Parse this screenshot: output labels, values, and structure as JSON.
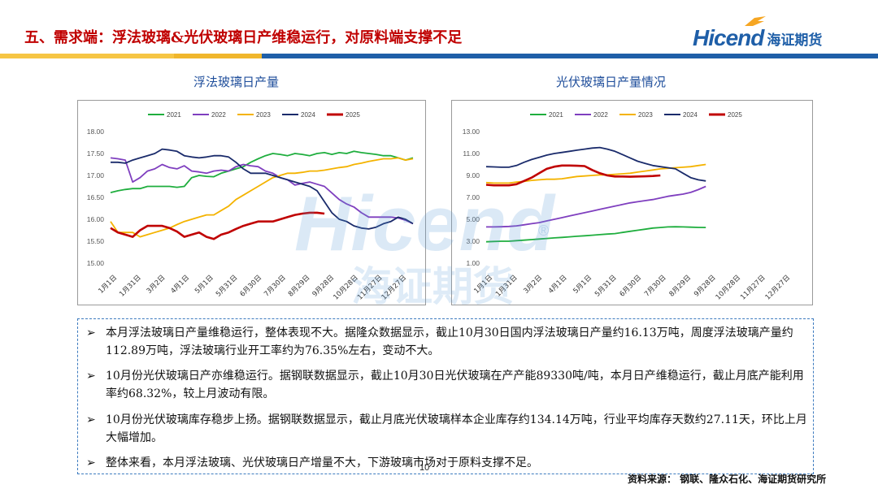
{
  "header": {
    "title": "五、需求端：浮法玻璃&光伏玻璃日产维稳运行，对原料端支撑不足",
    "logo_brand": "Hicend",
    "logo_sub": "海证期货",
    "bar_colors": [
      "#f6c544",
      "#f6c544",
      "#1f5fa8"
    ]
  },
  "watermark": {
    "brand": "Hicend",
    "sub": "海证期货",
    "mark": "®"
  },
  "chart_data": [
    {
      "type": "line",
      "title": "浮法玻璃日产量",
      "ylim": [
        15.0,
        18.0
      ],
      "yticks": [
        "18.00",
        "17.50",
        "17.00",
        "16.50",
        "16.00",
        "15.50",
        "15.00"
      ],
      "ytick_values": [
        18.0,
        17.5,
        17.0,
        16.5,
        16.0,
        15.5,
        15.0
      ],
      "xticks": [
        "1月1日",
        "1月31日",
        "3月2日",
        "4月1日",
        "5月1日",
        "5月31日",
        "6月30日",
        "7月30日",
        "8月29日",
        "9月28日",
        "10月28日",
        "11月27日",
        "12月27日"
      ],
      "grid": true,
      "legend": "top",
      "series": [
        {
          "name": "2021",
          "color": "#1fae3e",
          "values": [
            16.61,
            16.65,
            16.68,
            16.7,
            16.7,
            16.75,
            16.75,
            16.75,
            16.75,
            16.73,
            16.75,
            16.95,
            17.0,
            16.98,
            16.97,
            17.05,
            17.1,
            17.15,
            17.2,
            17.3,
            17.38,
            17.45,
            17.5,
            17.48,
            17.45,
            17.5,
            17.48,
            17.45,
            17.5,
            17.52,
            17.48,
            17.52,
            17.5,
            17.55,
            17.52,
            17.5,
            17.48,
            17.45,
            17.45,
            17.4,
            17.35,
            17.4
          ]
        },
        {
          "name": "2022",
          "color": "#7f3fbf",
          "values": [
            17.4,
            17.38,
            17.35,
            16.85,
            16.95,
            17.1,
            17.15,
            17.25,
            17.18,
            17.15,
            17.22,
            17.1,
            17.08,
            17.05,
            17.1,
            17.12,
            17.1,
            17.2,
            17.25,
            17.22,
            17.2,
            17.1,
            17.05,
            16.95,
            16.9,
            16.78,
            16.82,
            16.85,
            16.8,
            16.75,
            16.6,
            16.45,
            16.35,
            16.28,
            16.15,
            16.05,
            16.05,
            16.05,
            16.05,
            16.03,
            15.98,
            15.9
          ]
        },
        {
          "name": "2023",
          "color": "#f4b300",
          "values": [
            15.95,
            15.7,
            15.7,
            15.7,
            15.6,
            15.65,
            15.7,
            15.75,
            15.8,
            15.88,
            15.95,
            16.0,
            16.05,
            16.1,
            16.1,
            16.2,
            16.3,
            16.45,
            16.55,
            16.65,
            16.75,
            16.85,
            16.95,
            17.0,
            17.05,
            17.05,
            17.07,
            17.1,
            17.1,
            17.12,
            17.15,
            17.18,
            17.2,
            17.25,
            17.28,
            17.32,
            17.35,
            17.38,
            17.38,
            17.4,
            17.35,
            17.38
          ]
        },
        {
          "name": "2024",
          "color": "#1a2b6b",
          "values": [
            17.3,
            17.3,
            17.28,
            17.35,
            17.4,
            17.45,
            17.5,
            17.6,
            17.58,
            17.55,
            17.45,
            17.42,
            17.4,
            17.42,
            17.45,
            17.45,
            17.42,
            17.3,
            17.15,
            17.05,
            17.05,
            17.05,
            17.0,
            16.95,
            16.9,
            16.85,
            16.8,
            16.75,
            16.65,
            16.4,
            16.15,
            16.0,
            15.95,
            15.85,
            15.8,
            15.78,
            15.82,
            15.9,
            15.95,
            16.05,
            16.0,
            15.9
          ]
        },
        {
          "name": "2025",
          "color": "#c00000",
          "values": [
            15.8,
            15.7,
            15.65,
            15.6,
            15.75,
            15.85,
            15.85,
            15.85,
            15.8,
            15.72,
            15.6,
            15.65,
            15.7,
            15.6,
            15.55,
            15.65,
            15.7,
            15.78,
            15.85,
            15.9,
            15.95,
            15.95,
            15.95,
            16.0,
            16.05,
            16.1,
            16.13,
            16.15,
            16.15,
            16.13
          ]
        }
      ]
    },
    {
      "type": "line",
      "title": "光伏玻璃日产量情况",
      "ylim": [
        1.0,
        13.0
      ],
      "yticks": [
        "13.00",
        "11.00",
        "9.00",
        "7.00",
        "5.00",
        "3.00",
        "1.00"
      ],
      "ytick_values": [
        13.0,
        11.0,
        9.0,
        7.0,
        5.0,
        3.0,
        1.0
      ],
      "xticks": [
        "1月1日",
        "1月31日",
        "3月2日",
        "4月1日",
        "5月1日",
        "5月31日",
        "6月30日",
        "7月30日",
        "8月29日",
        "9月28日",
        "10月28日",
        "11月27日",
        "12月27日"
      ],
      "grid": true,
      "legend": "top",
      "series": [
        {
          "name": "2021",
          "color": "#1fae3e",
          "values": [
            2.95,
            2.98,
            3.0,
            3.0,
            3.05,
            3.1,
            3.15,
            3.2,
            3.25,
            3.3,
            3.35,
            3.4,
            3.45,
            3.5,
            3.55,
            3.6,
            3.65,
            3.7,
            3.8,
            3.9,
            4.0,
            4.1,
            4.2,
            4.25,
            4.3,
            4.32,
            4.3,
            4.28,
            4.26,
            4.25
          ]
        },
        {
          "name": "2022",
          "color": "#7f3fbf",
          "values": [
            4.3,
            4.3,
            4.32,
            4.35,
            4.4,
            4.5,
            4.6,
            4.7,
            4.85,
            5.0,
            5.15,
            5.3,
            5.45,
            5.6,
            5.75,
            5.9,
            6.05,
            6.2,
            6.35,
            6.5,
            6.6,
            6.7,
            6.8,
            6.95,
            7.1,
            7.2,
            7.3,
            7.45,
            7.7,
            8.0
          ]
        },
        {
          "name": "2023",
          "color": "#f4b300",
          "values": [
            8.35,
            8.3,
            8.3,
            8.3,
            8.4,
            8.45,
            8.55,
            8.6,
            8.65,
            8.65,
            8.7,
            8.8,
            8.9,
            8.95,
            9.0,
            9.05,
            9.05,
            9.1,
            9.15,
            9.2,
            9.3,
            9.4,
            9.5,
            9.6,
            9.65,
            9.7,
            9.75,
            9.8,
            9.9,
            10.0
          ]
        },
        {
          "name": "2024",
          "color": "#1a2b6b",
          "values": [
            9.8,
            9.78,
            9.75,
            9.75,
            9.9,
            10.2,
            10.45,
            10.65,
            10.85,
            11.0,
            11.1,
            11.2,
            11.3,
            11.4,
            11.5,
            11.55,
            11.4,
            11.2,
            10.9,
            10.6,
            10.3,
            10.1,
            9.9,
            9.8,
            9.7,
            9.6,
            9.2,
            8.8,
            8.6,
            8.5
          ]
        },
        {
          "name": "2025",
          "color": "#c00000",
          "values": [
            8.15,
            8.1,
            8.1,
            8.1,
            8.2,
            8.5,
            8.8,
            9.2,
            9.6,
            9.8,
            9.9,
            9.9,
            9.88,
            9.85,
            9.5,
            9.2,
            9.0,
            8.9,
            8.9,
            8.88,
            8.9,
            8.92,
            8.95,
            9.0
          ]
        }
      ]
    }
  ],
  "bullets": [
    {
      "arrow": "➢",
      "text": "本月浮法玻璃日产量维稳运行，整体表现不大。据隆众数据显示，截止10月30日国内浮法玻璃日产量约16.13万吨，周度浮法玻璃产量约112.89万吨，浮法玻璃行业开工率约为76.35%左右，变动不大。"
    },
    {
      "arrow": "➢",
      "text": "10月份光伏玻璃日产亦维稳运行。据钢联数据显示，截止10月30日光伏玻璃在产产能89330吨/吨，本月日产维稳运行，截止月底产能利用率约68.32%，较上月波动有限。"
    },
    {
      "arrow": "➢",
      "text": "10月份光伏玻璃库存稳步上扬。据钢联数据显示，截止月底光伏玻璃样本企业库存约134.14万吨，行业平均库存天数约27.11天，环比上月大幅增加。"
    },
    {
      "arrow": "➢",
      "text": "整体来看，本月浮法玻璃、光伏玻璃日产增量不大，下游玻璃市场对于原料支撑不足。"
    }
  ],
  "footer": {
    "page_number": "10",
    "source": "资料来源： 钢联、隆众石化、海证期货研究所"
  }
}
